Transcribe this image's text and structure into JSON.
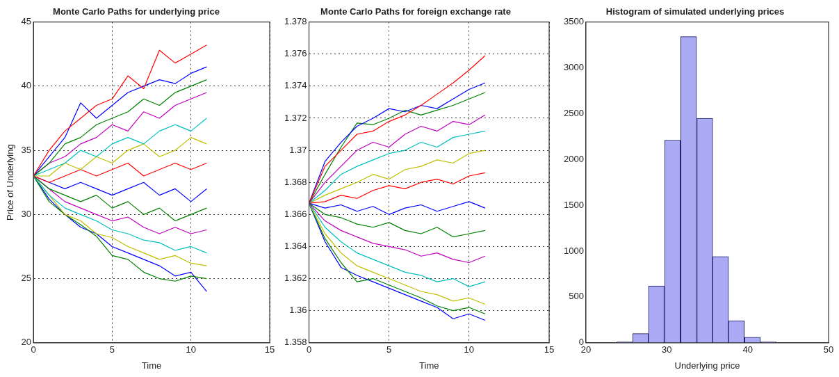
{
  "chart_data": [
    {
      "type": "line",
      "title": "Monte Carlo Paths for underlying price",
      "xlabel": "Time",
      "ylabel": "Price of Underlying",
      "x": [
        0,
        1,
        2,
        3,
        4,
        5,
        6,
        7,
        8,
        9,
        10,
        11
      ],
      "xlim": [
        0,
        15
      ],
      "xticks": [
        0,
        5,
        10,
        15
      ],
      "ylim": [
        20,
        45
      ],
      "yticks": [
        20,
        25,
        30,
        35,
        40,
        45
      ],
      "grid": true,
      "series": [
        {
          "color": "#ff0000",
          "values": [
            33,
            35,
            36.5,
            37.5,
            38.5,
            39,
            40.8,
            39.8,
            42.8,
            41.8,
            42.5,
            43.2
          ]
        },
        {
          "color": "#0000ff",
          "values": [
            33,
            34.5,
            36,
            38.7,
            37.5,
            38.5,
            39.5,
            40,
            40.5,
            40.2,
            41,
            41.5
          ]
        },
        {
          "color": "#008000",
          "values": [
            33,
            34,
            35.5,
            36,
            37,
            37.5,
            38,
            39,
            38.5,
            39.5,
            40,
            40.5
          ]
        },
        {
          "color": "#bf00bf",
          "values": [
            33,
            34,
            34.5,
            35.5,
            36,
            37,
            36.5,
            38,
            37.5,
            38.5,
            39,
            39.5
          ]
        },
        {
          "color": "#00bfbf",
          "values": [
            33,
            33.5,
            34,
            35,
            34.5,
            35.5,
            36,
            35.5,
            36.5,
            37,
            36.5,
            37.5
          ]
        },
        {
          "color": "#bfbf00",
          "values": [
            33,
            33,
            34,
            33.5,
            34.5,
            34,
            35,
            35.5,
            34.5,
            35,
            36,
            35.5
          ]
        },
        {
          "color": "#ff0000",
          "values": [
            33,
            32.5,
            33,
            33.5,
            33,
            33.5,
            34,
            33,
            33.5,
            34,
            33.5,
            34
          ]
        },
        {
          "color": "#0000ff",
          "values": [
            33,
            32.5,
            32,
            32.5,
            32,
            31.5,
            32,
            32.5,
            31.5,
            32,
            31,
            32
          ]
        },
        {
          "color": "#008000",
          "values": [
            33,
            32,
            31.5,
            31,
            31.5,
            30.5,
            31,
            30,
            30.5,
            29.5,
            30,
            30.5
          ]
        },
        {
          "color": "#bf00bf",
          "values": [
            33,
            32,
            31,
            30.5,
            30,
            29.5,
            29.8,
            29,
            28.5,
            29,
            28.5,
            28.8
          ]
        },
        {
          "color": "#00bfbf",
          "values": [
            33,
            31.5,
            30.5,
            30,
            29.5,
            28.8,
            28.5,
            28,
            27.8,
            27.2,
            27.5,
            27
          ]
        },
        {
          "color": "#bfbf00",
          "values": [
            33,
            31.5,
            30,
            29.5,
            28.5,
            28.2,
            27.5,
            27,
            26.5,
            26.8,
            26.2,
            26
          ]
        },
        {
          "color": "#008000",
          "values": [
            33,
            31,
            30,
            29.2,
            28.3,
            26.8,
            26.5,
            25.5,
            25,
            24.8,
            25.2,
            25
          ]
        },
        {
          "color": "#0000ff",
          "values": [
            33,
            31.2,
            30,
            29,
            28.5,
            27.5,
            27,
            26.5,
            26,
            25.2,
            25.5,
            24
          ]
        }
      ]
    },
    {
      "type": "line",
      "title": "Monte Carlo Paths for foreign exchange rate",
      "xlabel": "Time",
      "x": [
        0,
        1,
        2,
        3,
        4,
        5,
        6,
        7,
        8,
        9,
        10,
        11
      ],
      "xlim": [
        0,
        15
      ],
      "xticks": [
        0,
        5,
        10,
        15
      ],
      "ylim": [
        1.358,
        1.378
      ],
      "yticks": [
        1.358,
        1.36,
        1.362,
        1.364,
        1.366,
        1.368,
        1.37,
        1.372,
        1.374,
        1.376,
        1.378
      ],
      "grid": true,
      "series": [
        {
          "color": "#ff0000",
          "values": [
            1.3667,
            1.369,
            1.37,
            1.371,
            1.3712,
            1.3718,
            1.3722,
            1.3728,
            1.3735,
            1.3742,
            1.375,
            1.3759
          ]
        },
        {
          "color": "#0000ff",
          "values": [
            1.3667,
            1.3693,
            1.3705,
            1.3715,
            1.372,
            1.3726,
            1.3724,
            1.3728,
            1.3726,
            1.3732,
            1.3738,
            1.3742
          ]
        },
        {
          "color": "#008000",
          "values": [
            1.3667,
            1.3685,
            1.3702,
            1.3717,
            1.3716,
            1.372,
            1.3725,
            1.3722,
            1.3725,
            1.3728,
            1.3732,
            1.3736
          ]
        },
        {
          "color": "#bf00bf",
          "values": [
            1.3667,
            1.368,
            1.369,
            1.37,
            1.3705,
            1.3702,
            1.371,
            1.3715,
            1.3712,
            1.3718,
            1.3716,
            1.3722
          ]
        },
        {
          "color": "#00bfbf",
          "values": [
            1.3667,
            1.3675,
            1.3685,
            1.369,
            1.3694,
            1.3698,
            1.37,
            1.3705,
            1.3702,
            1.3708,
            1.371,
            1.3712
          ]
        },
        {
          "color": "#bfbf00",
          "values": [
            1.3667,
            1.3672,
            1.3676,
            1.368,
            1.3685,
            1.3682,
            1.3688,
            1.369,
            1.3694,
            1.3692,
            1.3698,
            1.37
          ]
        },
        {
          "color": "#ff0000",
          "values": [
            1.3667,
            1.3668,
            1.3672,
            1.367,
            1.3675,
            1.3678,
            1.3676,
            1.368,
            1.3682,
            1.3679,
            1.3684,
            1.3686
          ]
        },
        {
          "color": "#0000ff",
          "values": [
            1.3667,
            1.3664,
            1.3666,
            1.3662,
            1.3665,
            1.366,
            1.3664,
            1.3666,
            1.3662,
            1.3665,
            1.3668,
            1.3664
          ]
        },
        {
          "color": "#008000",
          "values": [
            1.3667,
            1.366,
            1.3658,
            1.3654,
            1.3652,
            1.3655,
            1.365,
            1.3648,
            1.3652,
            1.3646,
            1.3648,
            1.365
          ]
        },
        {
          "color": "#bf00bf",
          "values": [
            1.3667,
            1.3656,
            1.365,
            1.3646,
            1.3642,
            1.364,
            1.3638,
            1.3634,
            1.3636,
            1.3632,
            1.363,
            1.3634
          ]
        },
        {
          "color": "#00bfbf",
          "values": [
            1.3667,
            1.3652,
            1.3643,
            1.3636,
            1.3632,
            1.3628,
            1.3624,
            1.3622,
            1.3618,
            1.362,
            1.3615,
            1.3618
          ]
        },
        {
          "color": "#bfbf00",
          "values": [
            1.3667,
            1.3648,
            1.3636,
            1.3628,
            1.3624,
            1.362,
            1.3616,
            1.3612,
            1.361,
            1.3606,
            1.3608,
            1.3604
          ]
        },
        {
          "color": "#008000",
          "values": [
            1.3667,
            1.3645,
            1.363,
            1.3618,
            1.362,
            1.3616,
            1.3612,
            1.3608,
            1.3603,
            1.36,
            1.3602,
            1.3598
          ]
        },
        {
          "color": "#0000ff",
          "values": [
            1.3667,
            1.3643,
            1.3627,
            1.3622,
            1.3618,
            1.3614,
            1.361,
            1.3606,
            1.3602,
            1.3595,
            1.3598,
            1.3594
          ]
        }
      ]
    },
    {
      "type": "histogram",
      "title": "Histogram of simulated underlying prices",
      "xlabel": "Underlying price",
      "color": "#aaaaf5",
      "bins": [
        23.8,
        25.8,
        27.7,
        29.7,
        31.7,
        33.7,
        35.7,
        37.6,
        39.6,
        41.6,
        43.5
      ],
      "values": [
        10,
        100,
        620,
        2210,
        3340,
        2450,
        940,
        240,
        60,
        10
      ],
      "xlim": [
        20,
        50
      ],
      "xticks": [
        20,
        30,
        40,
        50
      ],
      "ylim": [
        0,
        3500
      ],
      "yticks": [
        0,
        500,
        1000,
        1500,
        2000,
        2500,
        3000,
        3500
      ]
    }
  ]
}
